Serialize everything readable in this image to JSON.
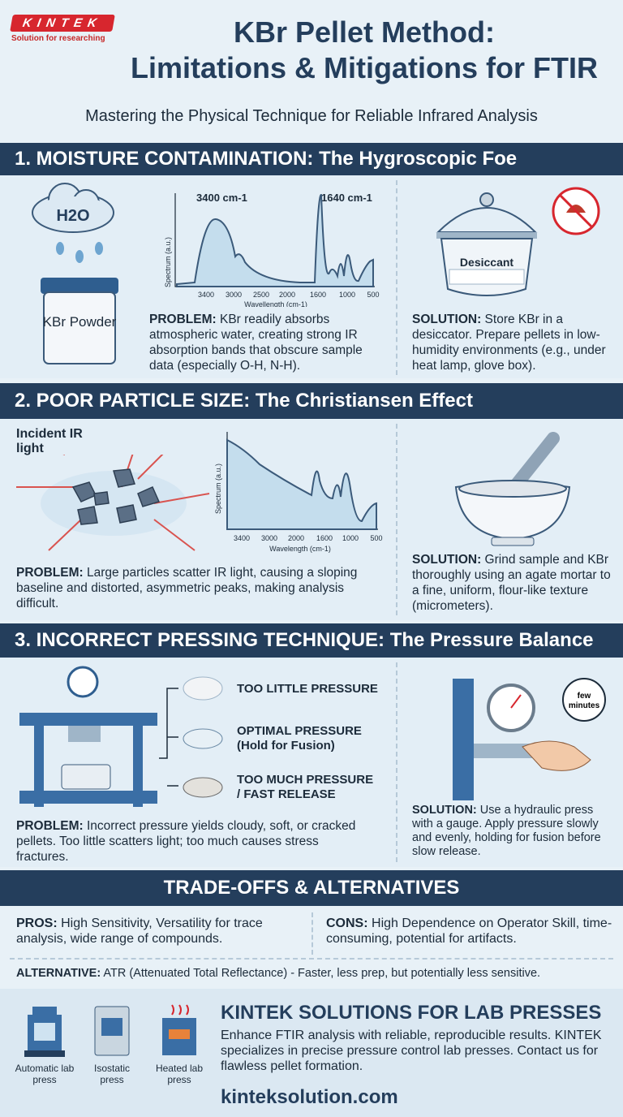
{
  "logo": {
    "brand": "KINTEK",
    "tagline": "Solution for researching"
  },
  "header": {
    "title_line1": "KBr Pellet Method:",
    "title_line2": "Limitations & Mitigations for FTIR",
    "subtitle": "Mastering the Physical Technique for Reliable Infrared Analysis"
  },
  "section1": {
    "heading": "1. MOISTURE CONTAMINATION: The Hygroscopic Foe",
    "cloud_label": "H2O",
    "jar_label": "KBr Powder",
    "chart": {
      "peak1": "3400 cm-1",
      "peak2": "1640 cm-1",
      "ylabel": "Spectrum (a.u.)",
      "xlabel": "Wavellength (cm-1)",
      "xticks": [
        "3400",
        "3000",
        "2500",
        "2000",
        "1600",
        "1000",
        "500"
      ]
    },
    "desiccator_label": "Desiccant",
    "problem_label": "PROBLEM:",
    "problem": " KBr readily absorbs atmospheric water, creating strong IR absorption bands that obscure sample data (especially O-H, N-H).",
    "solution_label": "SOLUTION:",
    "solution": " Store KBr in a desiccator. Prepare pellets in low-humidity environments (e.g., under heat lamp, glove box)."
  },
  "section2": {
    "heading": "2. POOR PARTICLE SIZE: The Christiansen Effect",
    "incident_label": "Incident IR light",
    "chart": {
      "ylabel": "Spectrum (a.u.)",
      "xlabel": "Wavelength (cm-1)",
      "xticks": [
        "3400",
        "3000",
        "2000",
        "1600",
        "1000",
        "500"
      ]
    },
    "problem_label": "PROBLEM:",
    "problem": " Large particles scatter IR light, causing a sloping baseline and distorted, asymmetric peaks, making analysis difficult.",
    "solution_label": "SOLUTION:",
    "solution": " Grind sample and KBr thoroughly using an agate mortar to a fine, uniform, flour-like texture (micrometers)."
  },
  "section3": {
    "heading": "3. INCORRECT PRESSING TECHNIQUE: The Pressure Balance",
    "outcomes": [
      {
        "label": "TOO LITTLE PRESSURE",
        "sub": ""
      },
      {
        "label": "OPTIMAL PRESSURE",
        "sub": "(Hold for Fusion)"
      },
      {
        "label": "TOO MUCH PRESSURE",
        "sub": "/ FAST RELEASE"
      }
    ],
    "timer_label": "few minutes",
    "problem_label": "PROBLEM:",
    "problem": " Incorrect pressure yields cloudy, soft, or cracked pellets. Too little scatters light; too much causes stress fractures.",
    "solution_label": "SOLUTION:",
    "solution": " Use a hydraulic press with a gauge. Apply pressure slowly and evenly, holding for fusion before slow release."
  },
  "tradeoffs": {
    "heading": "TRADE-OFFS & ALTERNATIVES",
    "pros_label": "PROS:",
    "pros": " High Sensitivity, Versatility for trace analysis, wide range of compounds.",
    "cons_label": "CONS:",
    "cons": " High Dependence on Operator Skill, time-consuming, potential for artifacts.",
    "alt_label": "ALTERNATIVE:",
    "alt": " ATR (Attenuated Total Reflectance) - Faster, less prep, but potentially less sensitive."
  },
  "footer": {
    "products": [
      "Automatic lab press",
      "Isostatic press",
      "Heated lab press"
    ],
    "title": "KINTEK SOLUTIONS FOR LAB PRESSES",
    "body": "Enhance FTIR analysis with reliable, reproducible results. KINTEK specializes in precise pressure control lab presses. Contact us for flawless pellet formation.",
    "url": "kinteksolution.com"
  },
  "colors": {
    "navy": "#243e5c",
    "accent_red": "#d7262e",
    "background": "#e8f1f7"
  }
}
